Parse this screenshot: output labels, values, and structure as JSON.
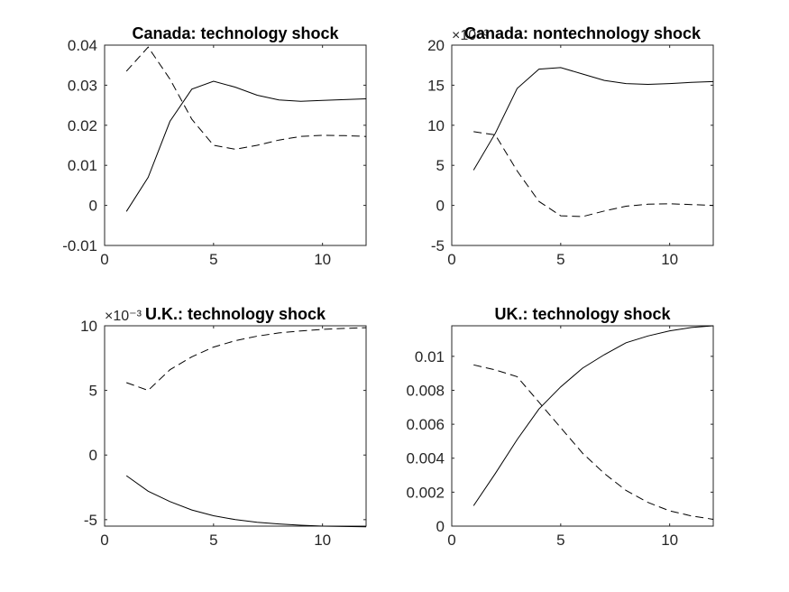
{
  "chart_data": [
    {
      "type": "line",
      "title": "Canada: technology shock",
      "xlim": [
        0,
        12
      ],
      "ylim": [
        -0.01,
        0.04
      ],
      "xticks": [
        0,
        5,
        10
      ],
      "xtick_labels": [
        "0",
        "5",
        "10"
      ],
      "yticks": [
        -0.01,
        0,
        0.01,
        0.02,
        0.03,
        0.04
      ],
      "ytick_labels": [
        "-0.01",
        "0",
        "0.01",
        "0.02",
        "0.03",
        "0.04"
      ],
      "exponent_label": "",
      "grid": false,
      "series": [
        {
          "style": "solid",
          "x": [
            1,
            2,
            3,
            4,
            5,
            6,
            7,
            8,
            9,
            10,
            11,
            12
          ],
          "y": [
            -0.0015,
            0.007,
            0.021,
            0.029,
            0.031,
            0.0295,
            0.0275,
            0.0263,
            0.026,
            0.0262,
            0.0264,
            0.0266
          ]
        },
        {
          "style": "dashed",
          "x": [
            1,
            2,
            3,
            4,
            5,
            6,
            7,
            8,
            9,
            10,
            11,
            12
          ],
          "y": [
            0.0335,
            0.0395,
            0.0315,
            0.0215,
            0.015,
            0.014,
            0.015,
            0.0163,
            0.0172,
            0.0175,
            0.0174,
            0.0172
          ]
        }
      ]
    },
    {
      "type": "line",
      "title": "Canada: nontechnology shock",
      "xlim": [
        0,
        12
      ],
      "ylim": [
        -5,
        20
      ],
      "xticks": [
        0,
        5,
        10
      ],
      "xtick_labels": [
        "0",
        "5",
        "10"
      ],
      "yticks": [
        -5,
        0,
        5,
        10,
        15,
        20
      ],
      "ytick_labels": [
        "-5",
        "0",
        "5",
        "10",
        "15",
        "20"
      ],
      "exponent_label": "×10⁻³",
      "grid": false,
      "series": [
        {
          "style": "solid",
          "x": [
            1,
            2,
            3,
            4,
            5,
            6,
            7,
            8,
            9,
            10,
            11,
            12
          ],
          "y": [
            4.4,
            9.0,
            14.6,
            17.0,
            17.2,
            16.4,
            15.6,
            15.2,
            15.1,
            15.2,
            15.35,
            15.45
          ]
        },
        {
          "style": "dashed",
          "x": [
            1,
            2,
            3,
            4,
            5,
            6,
            7,
            8,
            9,
            10,
            11,
            12
          ],
          "y": [
            9.2,
            8.8,
            4.3,
            0.5,
            -1.3,
            -1.4,
            -0.7,
            -0.1,
            0.15,
            0.2,
            0.1,
            0.0
          ]
        }
      ]
    },
    {
      "type": "line",
      "title": "U.K.: technology shock",
      "xlim": [
        0,
        12
      ],
      "ylim": [
        -5.5,
        10
      ],
      "xticks": [
        0,
        5,
        10
      ],
      "xtick_labels": [
        "0",
        "5",
        "10"
      ],
      "yticks": [
        -5,
        0,
        5,
        10
      ],
      "ytick_labels": [
        "-5",
        "0",
        "5",
        "10"
      ],
      "exponent_label": "×10⁻³",
      "grid": false,
      "series": [
        {
          "style": "solid",
          "x": [
            1,
            2,
            3,
            4,
            5,
            6,
            7,
            8,
            9,
            10,
            11,
            12
          ],
          "y": [
            -1.6,
            -2.8,
            -3.6,
            -4.25,
            -4.7,
            -5.0,
            -5.2,
            -5.33,
            -5.43,
            -5.5,
            -5.53,
            -5.55
          ]
        },
        {
          "style": "dashed",
          "x": [
            1,
            2,
            3,
            4,
            5,
            6,
            7,
            8,
            9,
            10,
            11,
            12
          ],
          "y": [
            5.6,
            5.0,
            6.6,
            7.6,
            8.35,
            8.85,
            9.2,
            9.45,
            9.6,
            9.72,
            9.8,
            9.85
          ]
        }
      ]
    },
    {
      "type": "line",
      "title": "UK.: technology shock",
      "xlim": [
        0,
        12
      ],
      "ylim": [
        0,
        0.0118
      ],
      "xticks": [
        0,
        5,
        10
      ],
      "xtick_labels": [
        "0",
        "5",
        "10"
      ],
      "yticks": [
        0,
        0.002,
        0.004,
        0.006,
        0.008,
        0.01
      ],
      "ytick_labels": [
        "0",
        "0.002",
        "0.004",
        "0.006",
        "0.008",
        "0.01"
      ],
      "exponent_label": "",
      "grid": false,
      "series": [
        {
          "style": "solid",
          "x": [
            1,
            2,
            3,
            4,
            5,
            6,
            7,
            8,
            9,
            10,
            11,
            12
          ],
          "y": [
            0.0012,
            0.0031,
            0.0051,
            0.0069,
            0.0082,
            0.0093,
            0.0101,
            0.0108,
            0.0112,
            0.0115,
            0.0117,
            0.0118
          ]
        },
        {
          "style": "dashed",
          "x": [
            1,
            2,
            3,
            4,
            5,
            6,
            7,
            8,
            9,
            10,
            11,
            12
          ],
          "y": [
            0.0095,
            0.0092,
            0.0088,
            0.0073,
            0.0058,
            0.0043,
            0.0031,
            0.0021,
            0.0014,
            0.0009,
            0.0006,
            0.0004
          ]
        }
      ]
    }
  ]
}
